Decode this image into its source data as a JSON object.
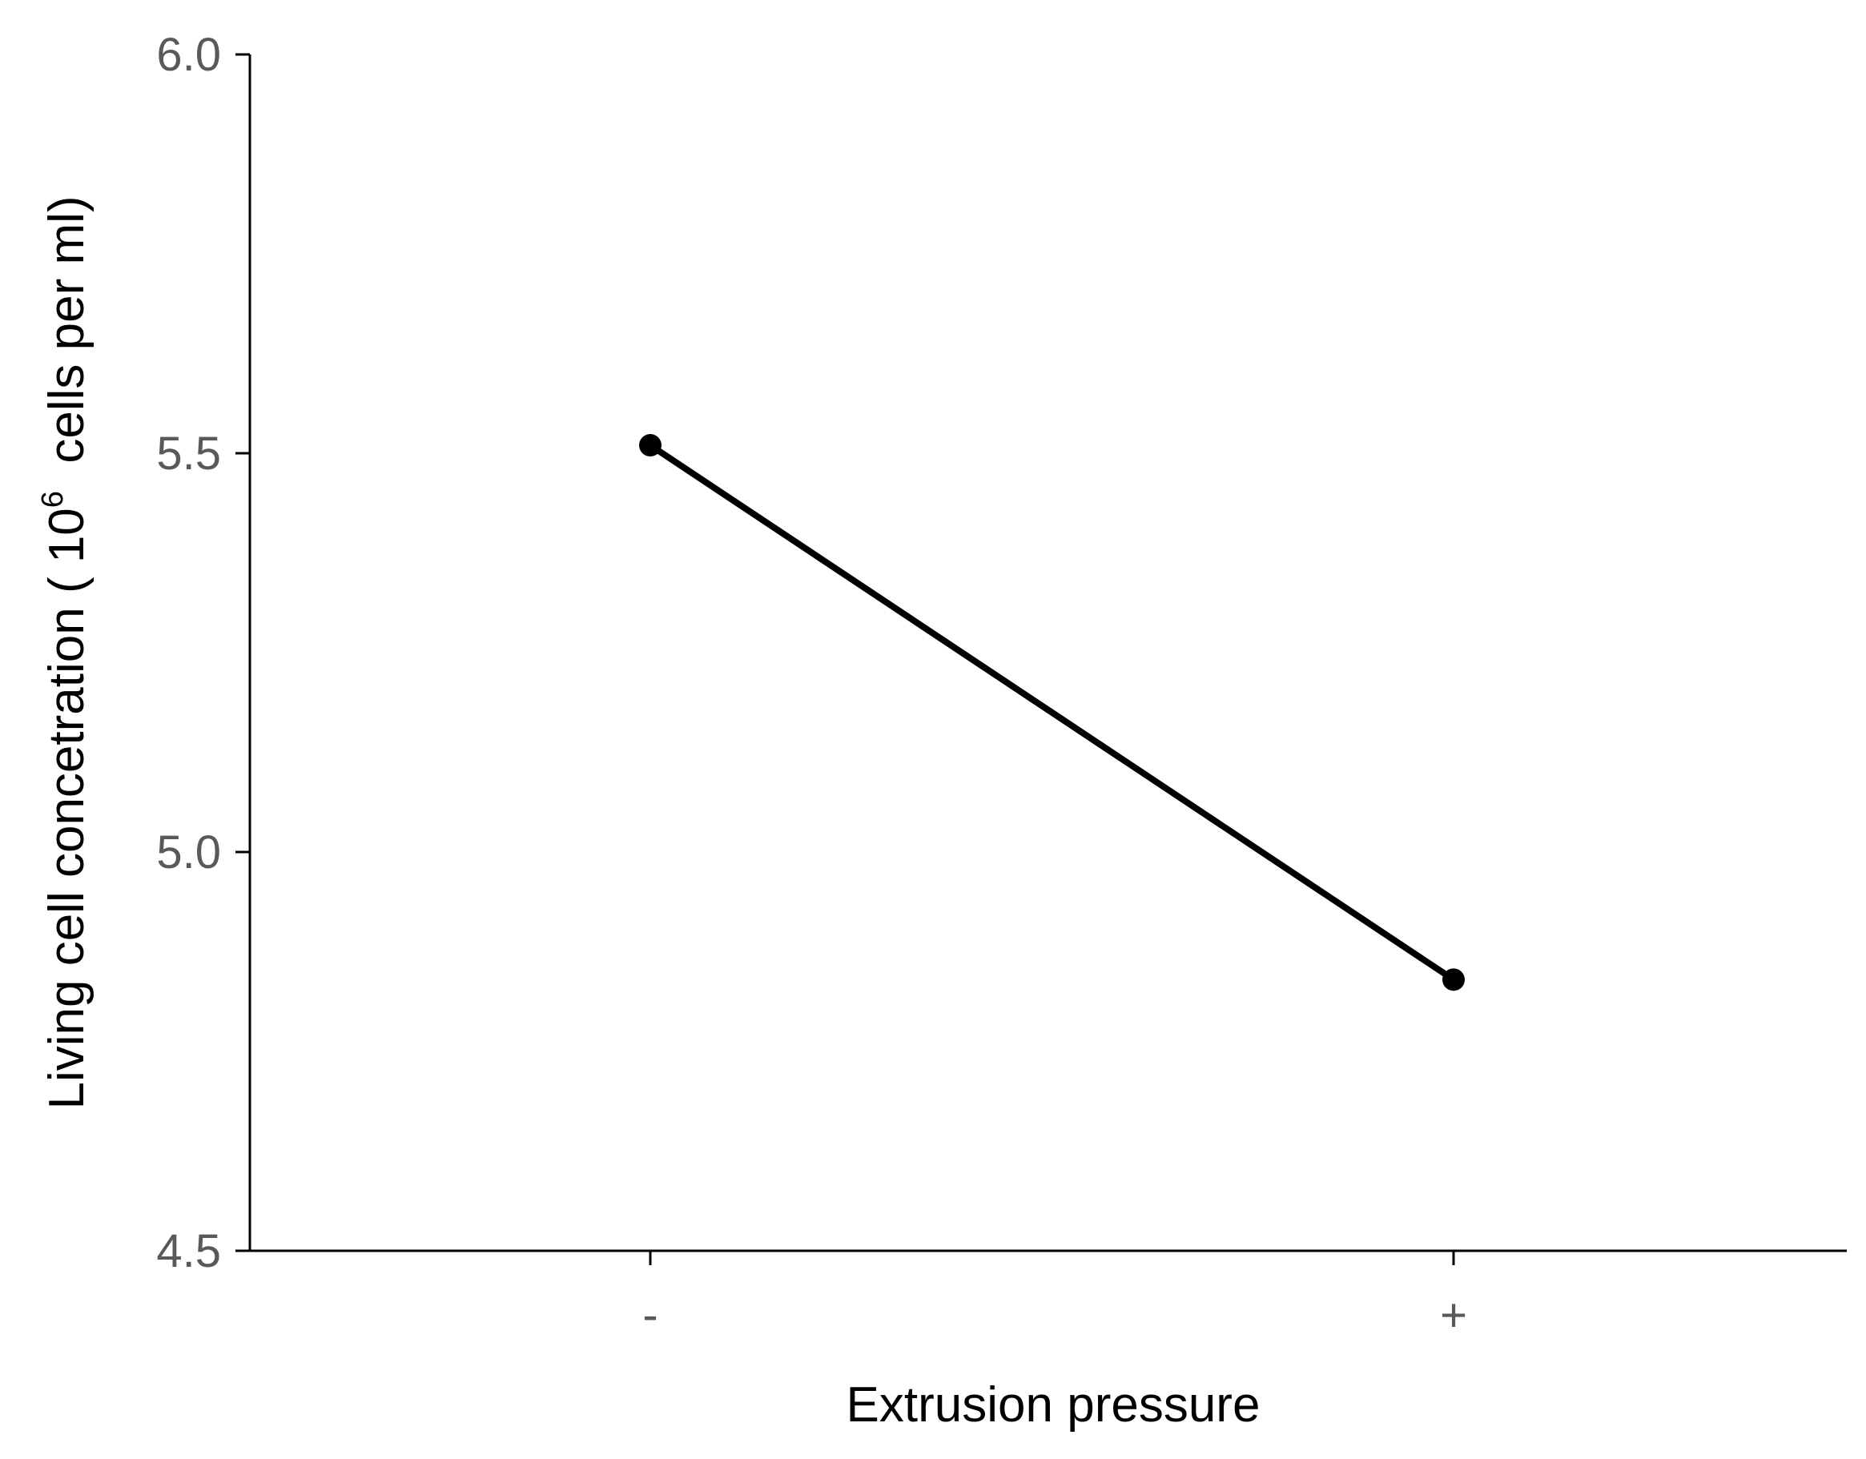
{
  "chart_data": {
    "type": "line",
    "title": "",
    "categories": [
      "-",
      "+"
    ],
    "series": [
      {
        "values": [
          5.51,
          4.84
        ]
      }
    ],
    "xlabel": "Extrusion pressure",
    "ylabel": {
      "prefix": "Living cell concetration ( 10",
      "superscript": "6",
      "suffix": "  cells per ml)"
    },
    "ylim": [
      4.5,
      6.0
    ],
    "yticks": [
      "4.5",
      "5.0",
      "5.5",
      "6.0"
    ],
    "grid": false,
    "legend": "none",
    "colors": {
      "line": "#000000",
      "axis": "#000000",
      "tick_text": "#595959",
      "label_text": "#000000"
    }
  }
}
